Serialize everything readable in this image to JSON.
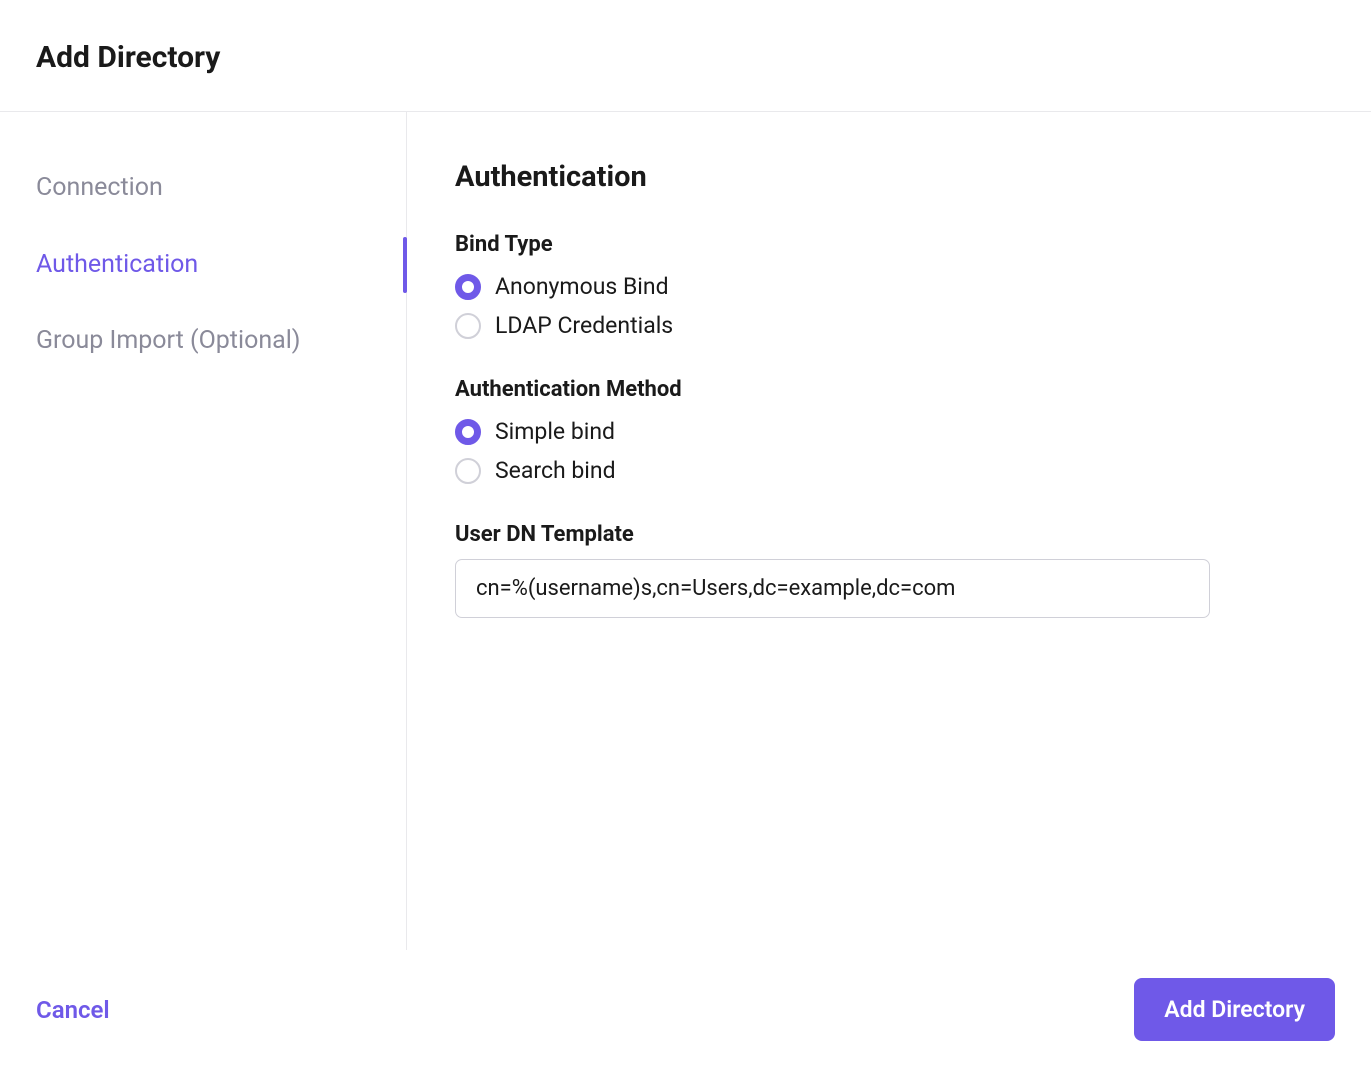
{
  "colors": {
    "accent": "#6f59e8",
    "text": "#1a1a1a",
    "muted": "#8a8a99",
    "border": "#e9e9ec",
    "input_border": "#d0d0d8",
    "background": "#ffffff"
  },
  "header": {
    "title": "Add Directory"
  },
  "sidebar": {
    "items": [
      {
        "label": "Connection",
        "active": false
      },
      {
        "label": "Authentication",
        "active": true
      },
      {
        "label": "Group Import (Optional)",
        "active": false
      }
    ]
  },
  "main": {
    "section_title": "Authentication",
    "bind_type": {
      "label": "Bind Type",
      "options": [
        {
          "label": "Anonymous Bind",
          "selected": true
        },
        {
          "label": "LDAP Credentials",
          "selected": false
        }
      ]
    },
    "auth_method": {
      "label": "Authentication Method",
      "options": [
        {
          "label": "Simple bind",
          "selected": true
        },
        {
          "label": "Search bind",
          "selected": false
        }
      ]
    },
    "user_dn": {
      "label": "User DN Template",
      "value": "cn=%(username)s,cn=Users,dc=example,dc=com"
    }
  },
  "footer": {
    "cancel_label": "Cancel",
    "submit_label": "Add Directory"
  }
}
